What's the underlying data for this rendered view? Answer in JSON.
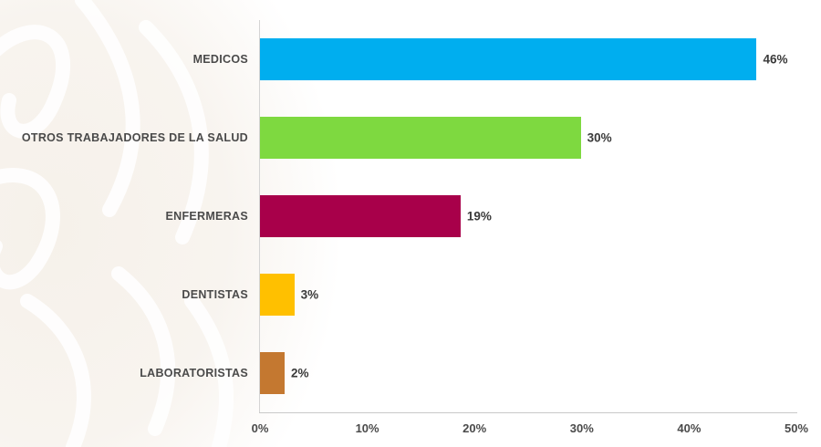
{
  "chart_data": {
    "type": "bar",
    "orientation": "horizontal",
    "title": "",
    "xlabel": "",
    "ylabel": "",
    "categories": [
      "MEDICOS",
      "OTROS TRABAJADORES DE LA SALUD",
      "ENFERMERAS",
      "DENTISTAS",
      "LABORATORISTAS"
    ],
    "values": [
      46,
      30,
      19,
      3,
      2
    ],
    "value_labels": [
      "46%",
      "30%",
      "19%",
      "3%",
      "2%"
    ],
    "colors": [
      "#00AEEF",
      "#7ED940",
      "#A8004A",
      "#FFC000",
      "#C47830"
    ],
    "xlim": [
      0,
      50
    ],
    "x_ticks": [
      "0%",
      "10%",
      "20%",
      "30%",
      "40%",
      "50%"
    ],
    "grid": false,
    "legend": "none"
  }
}
